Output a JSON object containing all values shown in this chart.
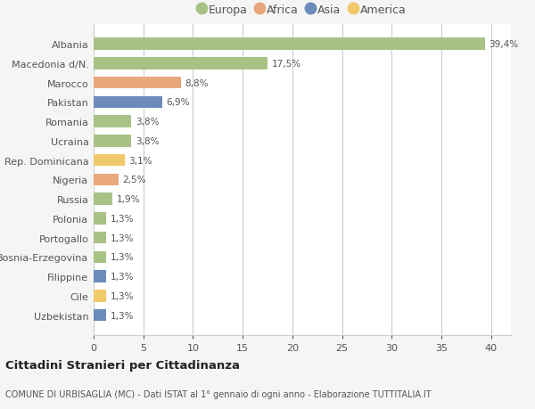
{
  "categories": [
    "Albania",
    "Macedonia d/N.",
    "Marocco",
    "Pakistan",
    "Romania",
    "Ucraina",
    "Rep. Dominicana",
    "Nigeria",
    "Russia",
    "Polonia",
    "Portogallo",
    "Bosnia-Erzegovina",
    "Filippine",
    "Cile",
    "Uzbekistan"
  ],
  "values": [
    39.4,
    17.5,
    8.8,
    6.9,
    3.8,
    3.8,
    3.1,
    2.5,
    1.9,
    1.3,
    1.3,
    1.3,
    1.3,
    1.3,
    1.3
  ],
  "labels": [
    "39,4%",
    "17,5%",
    "8,8%",
    "6,9%",
    "3,8%",
    "3,8%",
    "3,1%",
    "2,5%",
    "1,9%",
    "1,3%",
    "1,3%",
    "1,3%",
    "1,3%",
    "1,3%",
    "1,3%"
  ],
  "colors": [
    "#a8c285",
    "#a8c285",
    "#e8a87c",
    "#6b8cba",
    "#a8c285",
    "#a8c285",
    "#f0c96b",
    "#e8a87c",
    "#a8c285",
    "#a8c285",
    "#a8c285",
    "#a8c285",
    "#6b8cba",
    "#f0c96b",
    "#6b8cba"
  ],
  "legend_labels": [
    "Europa",
    "Africa",
    "Asia",
    "America"
  ],
  "legend_colors": [
    "#a8c285",
    "#e8a87c",
    "#6b8cba",
    "#f0c96b"
  ],
  "title": "Cittadini Stranieri per Cittadinanza",
  "subtitle": "COMUNE DI URBISAGLIA (MC) - Dati ISTAT al 1° gennaio di ogni anno - Elaborazione TUTTITALIA.IT",
  "xlim": [
    0,
    42
  ],
  "xticks": [
    0,
    5,
    10,
    15,
    20,
    25,
    30,
    35,
    40
  ],
  "background_color": "#f5f5f5",
  "bar_background": "#ffffff",
  "grid_color": "#cccccc",
  "text_color": "#555555"
}
